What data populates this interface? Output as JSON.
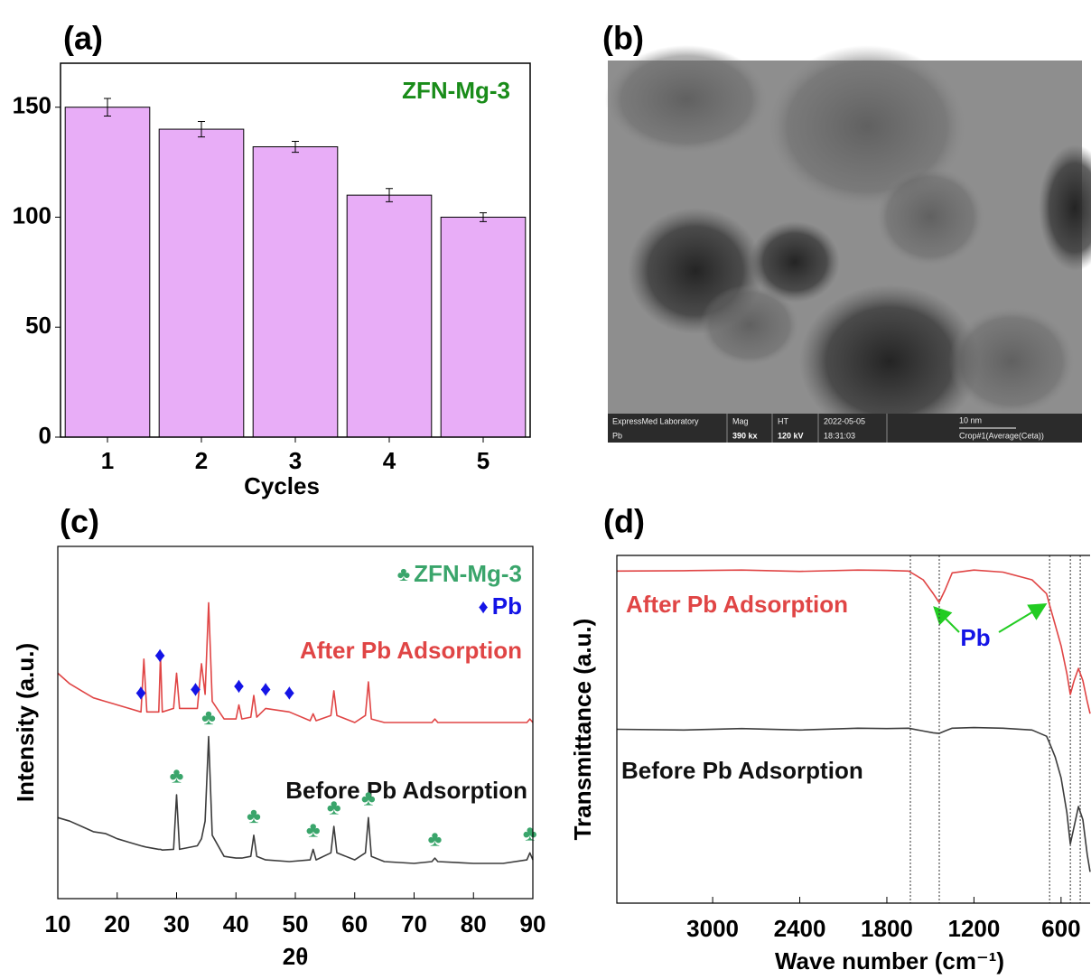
{
  "chart_data": [
    {
      "type": "bar",
      "panel": "(a)",
      "categories": [
        "1",
        "2",
        "3",
        "4",
        "5"
      ],
      "values": [
        150,
        140,
        132,
        110,
        100
      ],
      "errors": [
        4,
        3.5,
        2.5,
        3,
        2
      ],
      "color": "#e8adf7",
      "xlabel": "Cycles",
      "annotation": "ZFN-Mg-3",
      "annotation_color": "#198c19",
      "ylim": [
        0,
        170
      ],
      "yticks": [
        0,
        50,
        100,
        150
      ]
    },
    {
      "type": "line",
      "panel": "(c)",
      "xlabel": "2θ",
      "ylabel": "Intensity (a.u.)",
      "x": [
        10,
        12,
        14,
        16,
        18,
        20,
        22,
        24,
        24.5,
        25,
        27,
        27.3,
        27.6,
        29.5,
        30,
        30.5,
        33.5,
        34.2,
        34.8,
        35.4,
        36,
        38,
        40,
        40.5,
        41,
        42.5,
        43,
        43.5,
        45,
        49,
        52.5,
        53,
        53.5,
        56,
        56.5,
        57,
        60,
        61.8,
        62.3,
        62.8,
        65,
        70,
        73,
        73.5,
        74,
        80,
        85,
        89,
        89.5,
        90
      ],
      "xlim": [
        10,
        90
      ],
      "xticks": [
        10,
        20,
        30,
        40,
        50,
        60,
        70,
        80,
        90
      ],
      "ylim": [
        0,
        100
      ],
      "series": [
        {
          "name": "After Pb Adsorption",
          "color": "#e04545",
          "values": [
            64,
            61,
            59,
            57,
            56,
            55,
            54,
            53,
            68,
            53,
            53,
            69,
            53,
            54,
            64,
            54,
            54,
            66.7,
            58,
            84,
            56,
            51,
            51,
            55,
            51,
            51.5,
            57.7,
            51.5,
            54,
            53,
            50.5,
            52.5,
            50.5,
            52,
            59,
            52,
            50,
            52,
            61.5,
            51,
            50,
            50,
            50,
            51,
            50,
            50,
            50,
            50,
            51,
            50
          ]
        },
        {
          "name": "Before Pb Adsorption",
          "color": "#3c3c3c",
          "values": [
            23,
            22,
            20.5,
            19,
            18.5,
            17,
            16,
            15,
            14.8,
            14.6,
            14,
            14,
            13.8,
            14,
            29.5,
            14,
            15,
            17,
            22,
            46,
            18,
            12,
            11.5,
            11.5,
            11.5,
            12,
            18,
            12,
            11,
            10.5,
            11,
            14,
            11,
            13,
            20.5,
            13,
            11,
            13,
            23,
            12,
            10.5,
            10,
            10.5,
            11.5,
            10.5,
            10,
            10,
            11,
            13,
            11
          ]
        }
      ],
      "markers": [
        {
          "name": "ZFN-Mg-3",
          "symbol": "♣",
          "color": "#3aa56b",
          "x": [
            30,
            35.4,
            43,
            53,
            56.5,
            62.3,
            73.5,
            89.5
          ]
        },
        {
          "name": "Pb",
          "symbol": "♦",
          "color": "#1414e6",
          "x": [
            24,
            27.2,
            33.2,
            40.5,
            45,
            49
          ]
        }
      ]
    },
    {
      "type": "line",
      "panel": "(d)",
      "xlabel": "Wave number (cm⁻¹)",
      "ylabel": "Transmittance (a.u.)",
      "x": [
        3660,
        3200,
        2800,
        2400,
        2000,
        1800,
        1650,
        1550,
        1480,
        1440,
        1400,
        1350,
        1200,
        1000,
        800,
        700,
        679,
        640,
        600,
        560,
        536,
        510,
        480,
        450,
        420,
        400
      ],
      "xlim": [
        3660,
        400
      ],
      "xticks": [
        3000,
        2400,
        1800,
        1200,
        600
      ],
      "ylim": [
        0,
        100
      ],
      "series": [
        {
          "name": "After Pb Adsorption",
          "color": "#e04545",
          "values": [
            95.5,
            95.6,
            95.8,
            95.4,
            95.8,
            95.7,
            95.5,
            93,
            89,
            86.5,
            90,
            95,
            95.8,
            95.2,
            93,
            89,
            85.7,
            80,
            74,
            66,
            60,
            64,
            67.5,
            64,
            58,
            54.5
          ]
        },
        {
          "name": "Before Pb Adsorption",
          "color": "#3c3c3c",
          "values": [
            50,
            49.8,
            50.2,
            49.8,
            50.3,
            50.2,
            50.3,
            49.5,
            49,
            48.8,
            49.5,
            50.3,
            50.5,
            50.3,
            49.8,
            48,
            46,
            42,
            36,
            26,
            17,
            22,
            27.8,
            24,
            14,
            9
          ]
        }
      ],
      "reference_lines": [
        1638,
        1439,
        679,
        536,
        468
      ],
      "annotation": "Pb",
      "annotation_color": "#1414e6"
    }
  ],
  "micrograph": {
    "panel": "(b)",
    "lab": "ExpressMed Laboratory",
    "sample": "Pb",
    "mag_label": "Mag",
    "mag": "390 kx",
    "ht_label": "HT",
    "ht": "120 kV",
    "date": "2022-05-05",
    "time": "18:31:03",
    "scale": "10 nm",
    "crop": "Crop#1(Average(Ceta))"
  }
}
